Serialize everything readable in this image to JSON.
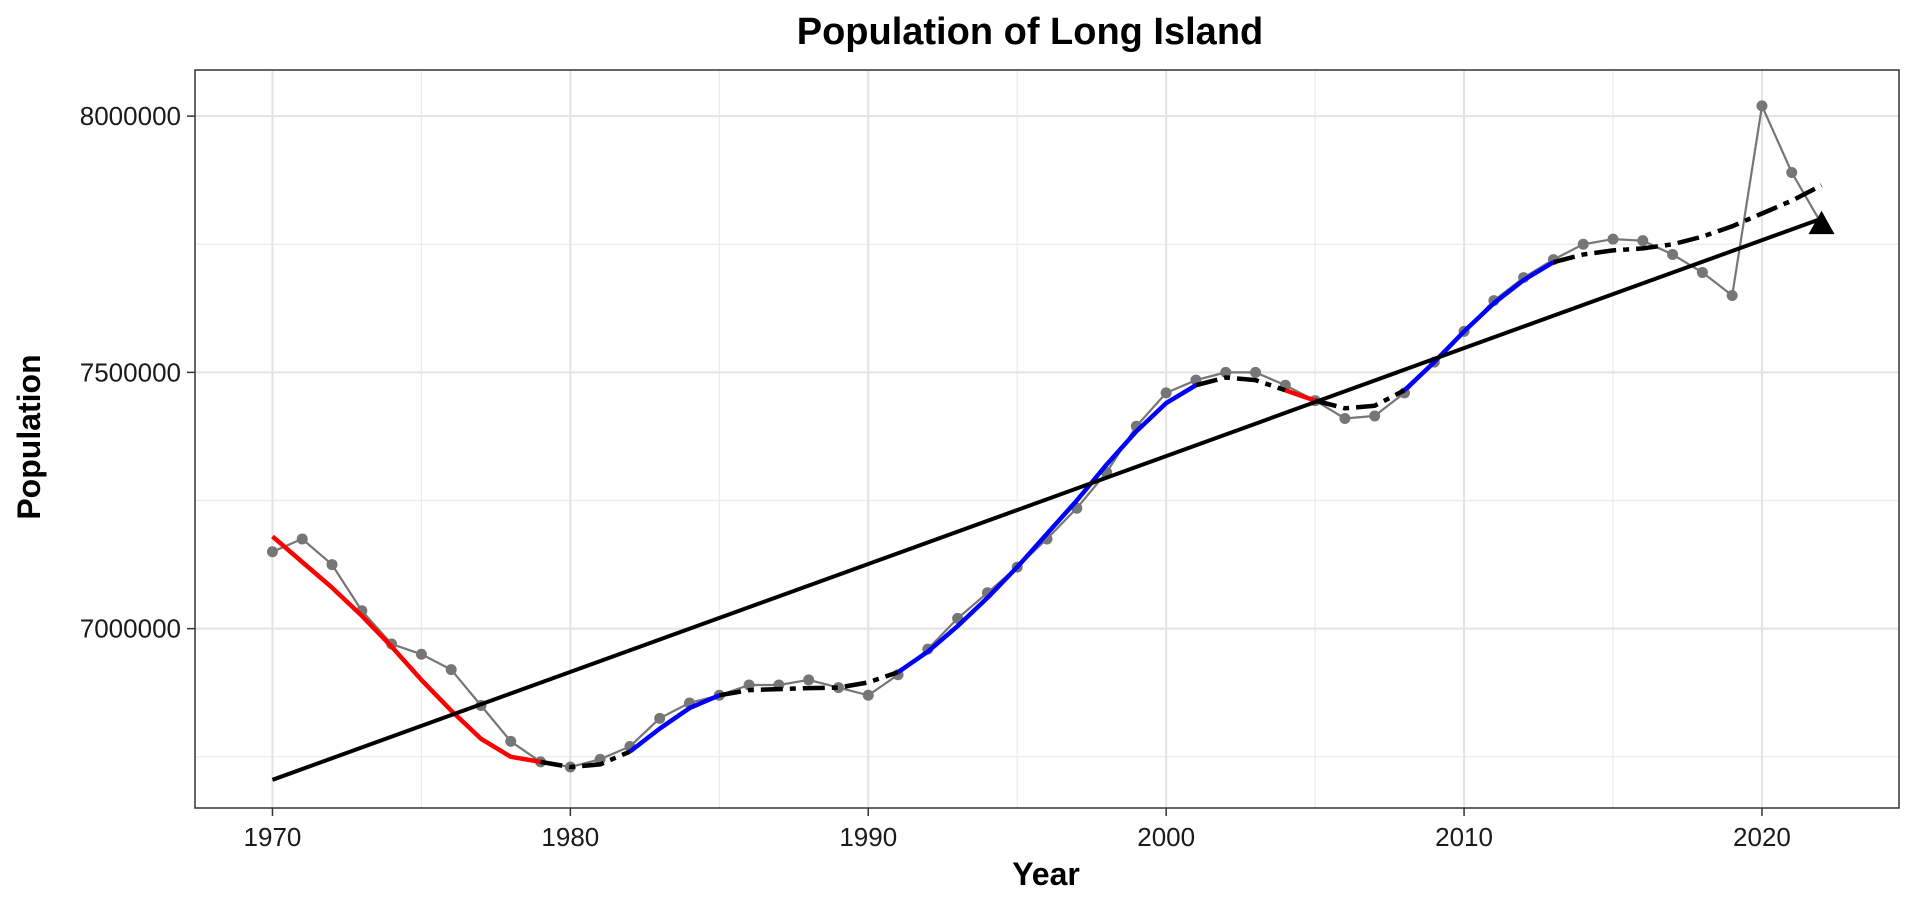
{
  "chart_data": {
    "type": "line",
    "title": "Population of Long Island",
    "xlabel": "Year",
    "ylabel": "Population",
    "xlim": [
      1967.4,
      2024.6
    ],
    "ylim": [
      6650000,
      8090000
    ],
    "x_ticks": [
      1970,
      1980,
      1990,
      2000,
      2010,
      2020
    ],
    "y_ticks": [
      7000000,
      7500000,
      8000000
    ],
    "x_tick_labels": [
      "1970",
      "1980",
      "1990",
      "2000",
      "2010",
      "2020"
    ],
    "y_tick_labels": [
      "7000000",
      "7500000",
      "8000000"
    ],
    "grid": true,
    "legend": "none",
    "colors": {
      "points": "#767676",
      "decline": "#ff0000",
      "growth": "#0000ff",
      "flat": "#000000",
      "trend": "#000000",
      "marker": "#000000"
    },
    "series": [
      {
        "type": "line-points",
        "x": [
          1970,
          1971,
          1972,
          1973,
          1974,
          1975,
          1976,
          1977,
          1978,
          1979,
          1980,
          1981,
          1982,
          1983,
          1984,
          1985,
          1986,
          1987,
          1988,
          1989,
          1990,
          1991,
          1992,
          1993,
          1994,
          1995,
          1996,
          1997,
          1998,
          1999,
          2000,
          2001,
          2002,
          2003,
          2004,
          2005,
          2006,
          2007,
          2008,
          2009,
          2010,
          2011,
          2012,
          2013,
          2014,
          2015,
          2016,
          2017,
          2018,
          2019,
          2020,
          2021,
          2022
        ],
        "y": [
          7150000,
          7175000,
          7125000,
          7035000,
          6970000,
          6950000,
          6920000,
          6850000,
          6780000,
          6740000,
          6730000,
          6745000,
          6770000,
          6825000,
          6855000,
          6870000,
          6890000,
          6890000,
          6900000,
          6885000,
          6870000,
          6910000,
          6960000,
          7020000,
          7070000,
          7120000,
          7175000,
          7235000,
          7305000,
          7395000,
          7460000,
          7485000,
          7500000,
          7500000,
          7475000,
          7445000,
          7410000,
          7415000,
          7460000,
          7520000,
          7580000,
          7640000,
          7685000,
          7720000,
          7750000,
          7760000,
          7757000,
          7730000,
          7695000,
          7650000,
          8020000,
          7890000,
          7790000
        ]
      },
      {
        "type": "smooth-segments",
        "segments": [
          {
            "trend": "decline",
            "x": [
              1970,
              1971,
              1972,
              1973,
              1974,
              1975,
              1976,
              1977,
              1978,
              1979
            ],
            "y": [
              7180000,
              7130000,
              7080000,
              7025000,
              6965000,
              6900000,
              6840000,
              6785000,
              6750000,
              6740000
            ]
          },
          {
            "trend": "flat",
            "x": [
              1979,
              1980,
              1981,
              1982
            ],
            "y": [
              6740000,
              6730000,
              6735000,
              6760000
            ]
          },
          {
            "trend": "growth",
            "x": [
              1982,
              1983,
              1984,
              1985
            ],
            "y": [
              6760000,
              6805000,
              6845000,
              6870000
            ]
          },
          {
            "trend": "flat",
            "x": [
              1985,
              1986,
              1987,
              1988,
              1989,
              1990,
              1991
            ],
            "y": [
              6870000,
              6880000,
              6882000,
              6884000,
              6885000,
              6895000,
              6915000
            ]
          },
          {
            "trend": "growth",
            "x": [
              1991,
              1992,
              1993,
              1994,
              1995,
              1996,
              1997,
              1998,
              1999,
              2000,
              2001
            ],
            "y": [
              6915000,
              6955000,
              7005000,
              7060000,
              7120000,
              7185000,
              7250000,
              7320000,
              7385000,
              7440000,
              7475000
            ]
          },
          {
            "trend": "flat",
            "x": [
              2001,
              2002,
              2003,
              2004
            ],
            "y": [
              7475000,
              7490000,
              7485000,
              7465000
            ]
          },
          {
            "trend": "decline",
            "x": [
              2004,
              2005
            ],
            "y": [
              7465000,
              7445000
            ]
          },
          {
            "trend": "flat",
            "x": [
              2005,
              2006,
              2007,
              2008
            ],
            "y": [
              7445000,
              7430000,
              7435000,
              7465000
            ]
          },
          {
            "trend": "growth",
            "x": [
              2008,
              2009,
              2010,
              2011,
              2012,
              2013
            ],
            "y": [
              7465000,
              7520000,
              7580000,
              7635000,
              7680000,
              7715000
            ]
          },
          {
            "trend": "flat",
            "x": [
              2013,
              2014,
              2015,
              2016,
              2017,
              2018,
              2019,
              2020,
              2021,
              2022
            ],
            "y": [
              7715000,
              7730000,
              7738000,
              7742000,
              7750000,
              7765000,
              7785000,
              7810000,
              7835000,
              7865000
            ]
          }
        ]
      },
      {
        "type": "trend-line",
        "x": [
          1970,
          2022
        ],
        "y": [
          6705000,
          7800000
        ]
      },
      {
        "type": "marker",
        "shape": "triangle",
        "x": 2022,
        "y": 7790000
      }
    ]
  }
}
